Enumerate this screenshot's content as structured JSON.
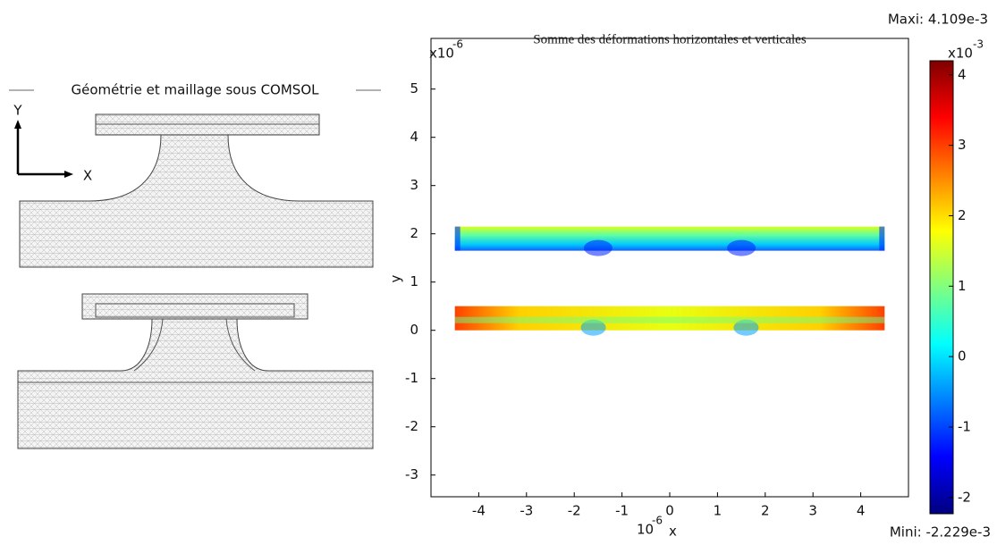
{
  "diagram": {
    "title": "Géométrie et maillage sous COMSOL",
    "axis_y": "Y",
    "axis_x": "X"
  },
  "chart_data": {
    "type": "surface",
    "title": "Somme des déformations horizontales et verticales",
    "xlabel": "x",
    "ylabel": "y",
    "x_scale": {
      "base": "10",
      "exponent": "-6"
    },
    "y_scale": {
      "base": "x10",
      "exponent": "-6"
    },
    "xlim": [
      -5,
      5
    ],
    "ylim": [
      -3.45,
      6.05
    ],
    "xticks": [
      -4,
      -3,
      -2,
      -1,
      0,
      1,
      2,
      3,
      4
    ],
    "yticks": [
      -3,
      -2,
      -1,
      0,
      1,
      2,
      3,
      4,
      5
    ],
    "colormap": "jet",
    "domains": [
      {
        "xlim": [
          -4.5,
          4.5
        ],
        "ylim": [
          1.65,
          2.15
        ]
      },
      {
        "xlim": [
          -4.5,
          4.5
        ],
        "ylim": [
          0,
          0.5
        ]
      }
    ],
    "colorbar": {
      "lim": [
        -2.23,
        4.2
      ],
      "ticks": [
        -2,
        -1,
        0,
        1,
        2,
        3,
        4
      ],
      "scale": {
        "base": "x10",
        "exponent": "-3"
      },
      "max_label": "Maxi: 4.109e-3",
      "min_label": "Mini: -2.229e-3"
    }
  }
}
